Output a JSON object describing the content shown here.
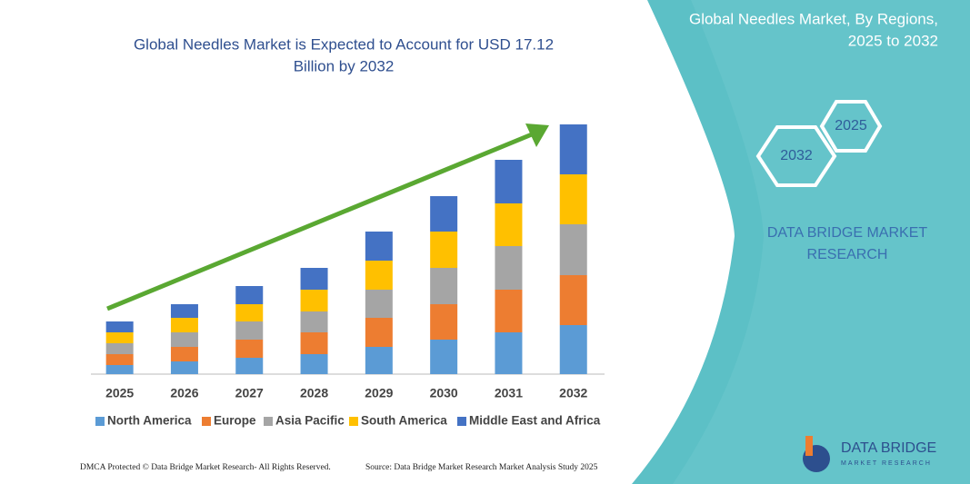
{
  "chart_data": {
    "type": "bar",
    "stacked": true,
    "title": "Global Needles Market is Expected to Account for USD 17.12 Billion by 2032",
    "categories": [
      "2025",
      "2026",
      "2027",
      "2028",
      "2029",
      "2030",
      "2031",
      "2032"
    ],
    "series": [
      {
        "name": "North America",
        "color": "#5b9bd5",
        "values": [
          10,
          14,
          18,
          22,
          30,
          38,
          46,
          54
        ]
      },
      {
        "name": "Europe",
        "color": "#ed7d31",
        "values": [
          12,
          16,
          20,
          24,
          32,
          39,
          47,
          55
        ]
      },
      {
        "name": "Asia Pacific",
        "color": "#a5a5a5",
        "values": [
          12,
          16,
          20,
          23,
          31,
          40,
          48,
          56
        ]
      },
      {
        "name": "South America",
        "color": "#ffc000",
        "values": [
          12,
          16,
          19,
          24,
          32,
          40,
          47,
          55
        ]
      },
      {
        "name": "Middle East and Africa",
        "color": "#4472c4",
        "values": [
          12,
          15,
          20,
          24,
          32,
          39,
          48,
          55
        ]
      }
    ]
  },
  "panel": {
    "title": "Global Needles Market, By Regions, 2025 to 2032",
    "hex_labels": [
      "2025",
      "2032"
    ],
    "brand": "DATA BRIDGE MARKET RESEARCH",
    "logo_name": "DATA BRIDGE",
    "logo_sub": "MARKET RESEARCH"
  },
  "footer": {
    "left": "DMCA Protected © Data Bridge Market Research- All Rights Reserved.",
    "right": "Source: Data Bridge Market Research Market Analysis Study 2025"
  }
}
